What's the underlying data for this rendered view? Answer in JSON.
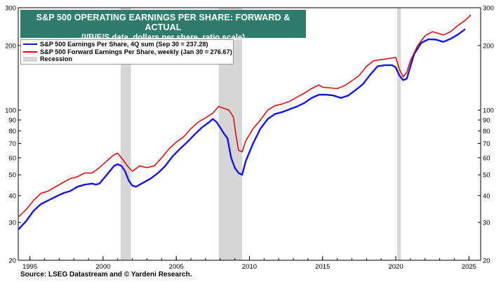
{
  "chart_data": {
    "type": "line",
    "title": "S&P 500 OPERATING EARNINGS PER SHARE: FORWARD & ACTUAL",
    "subtitle": "(I/B/E/S data, dollars per share, ratio scale)",
    "scale": "log",
    "xlim": [
      1994.2,
      2025.8
    ],
    "ylim": [
      20,
      300
    ],
    "y_ticks": [
      20,
      30,
      40,
      50,
      60,
      70,
      80,
      90,
      100,
      200,
      300
    ],
    "x_ticks": [
      1995,
      2000,
      2005,
      2010,
      2015,
      2020,
      2025
    ],
    "grid": false,
    "legend_position": "top-left",
    "recessions": [
      [
        2001.2,
        2001.9
      ],
      [
        2007.9,
        2009.5
      ],
      [
        2020.1,
        2020.35
      ]
    ],
    "recession_label": "Recession",
    "recession_color": "#d6d6d6",
    "series": [
      {
        "name": "S&P 500 Earnings Per Share, 4Q sum (Sep 30 = 237.28)",
        "color": "#1414e6",
        "points": [
          [
            1994.25,
            28
          ],
          [
            1994.75,
            30.5
          ],
          [
            1995.25,
            34
          ],
          [
            1995.75,
            36.5
          ],
          [
            1996.25,
            38
          ],
          [
            1996.75,
            39.5
          ],
          [
            1997.25,
            41
          ],
          [
            1997.75,
            42
          ],
          [
            1998.25,
            44
          ],
          [
            1998.75,
            45
          ],
          [
            1999.25,
            45.5
          ],
          [
            1999.5,
            45
          ],
          [
            1999.75,
            45.5
          ],
          [
            2000.25,
            50
          ],
          [
            2000.75,
            55
          ],
          [
            2001.0,
            56
          ],
          [
            2001.25,
            55
          ],
          [
            2001.5,
            52
          ],
          [
            2001.75,
            47
          ],
          [
            2002.0,
            44.5
          ],
          [
            2002.25,
            44
          ],
          [
            2002.75,
            46
          ],
          [
            2003.25,
            48
          ],
          [
            2003.75,
            51
          ],
          [
            2004.25,
            55
          ],
          [
            2004.75,
            61
          ],
          [
            2005.25,
            66
          ],
          [
            2005.75,
            71
          ],
          [
            2006.25,
            77
          ],
          [
            2006.75,
            83
          ],
          [
            2007.25,
            88
          ],
          [
            2007.5,
            91
          ],
          [
            2007.75,
            88
          ],
          [
            2008.0,
            83
          ],
          [
            2008.25,
            78
          ],
          [
            2008.5,
            74
          ],
          [
            2008.75,
            60
          ],
          [
            2009.0,
            54
          ],
          [
            2009.25,
            51
          ],
          [
            2009.5,
            50
          ],
          [
            2009.75,
            58
          ],
          [
            2010.25,
            70
          ],
          [
            2010.75,
            82
          ],
          [
            2011.25,
            91
          ],
          [
            2011.75,
            96
          ],
          [
            2012.25,
            98
          ],
          [
            2012.75,
            101
          ],
          [
            2013.25,
            104
          ],
          [
            2013.75,
            108
          ],
          [
            2014.25,
            114
          ],
          [
            2014.75,
            118
          ],
          [
            2015.25,
            118
          ],
          [
            2015.75,
            117
          ],
          [
            2016.25,
            114
          ],
          [
            2016.75,
            117
          ],
          [
            2017.25,
            124
          ],
          [
            2017.75,
            132
          ],
          [
            2018.25,
            146
          ],
          [
            2018.75,
            160
          ],
          [
            2019.25,
            162
          ],
          [
            2019.75,
            162
          ],
          [
            2020.0,
            158
          ],
          [
            2020.25,
            145
          ],
          [
            2020.5,
            138
          ],
          [
            2020.75,
            140
          ],
          [
            2021.0,
            160
          ],
          [
            2021.25,
            182
          ],
          [
            2021.75,
            206
          ],
          [
            2022.25,
            214
          ],
          [
            2022.75,
            213
          ],
          [
            2023.25,
            208
          ],
          [
            2023.75,
            215
          ],
          [
            2024.25,
            225
          ],
          [
            2024.7,
            237.28
          ]
        ]
      },
      {
        "name": "S&P 500 Forward Earnings Per Share, weekly (Jan 30 = 276.67)",
        "color": "#e60000",
        "points": [
          [
            1994.25,
            32
          ],
          [
            1994.75,
            34.5
          ],
          [
            1995.25,
            38
          ],
          [
            1995.75,
            41
          ],
          [
            1996.25,
            42
          ],
          [
            1996.75,
            44
          ],
          [
            1997.25,
            46
          ],
          [
            1997.75,
            48
          ],
          [
            1998.25,
            49
          ],
          [
            1998.75,
            51
          ],
          [
            1999.25,
            51
          ],
          [
            1999.75,
            54
          ],
          [
            2000.25,
            58
          ],
          [
            2000.75,
            62
          ],
          [
            2001.0,
            63
          ],
          [
            2001.25,
            60
          ],
          [
            2001.5,
            57
          ],
          [
            2001.75,
            54
          ],
          [
            2002.0,
            52
          ],
          [
            2002.5,
            55
          ],
          [
            2003.0,
            54
          ],
          [
            2003.5,
            55
          ],
          [
            2004.0,
            60
          ],
          [
            2004.5,
            66
          ],
          [
            2005.0,
            71
          ],
          [
            2005.5,
            75
          ],
          [
            2006.0,
            82
          ],
          [
            2006.5,
            88
          ],
          [
            2007.0,
            92
          ],
          [
            2007.5,
            97
          ],
          [
            2007.9,
            104
          ],
          [
            2008.25,
            102
          ],
          [
            2008.6,
            100
          ],
          [
            2008.9,
            93
          ],
          [
            2009.1,
            75
          ],
          [
            2009.25,
            65
          ],
          [
            2009.5,
            64
          ],
          [
            2009.75,
            72
          ],
          [
            2010.25,
            82
          ],
          [
            2010.75,
            90
          ],
          [
            2011.25,
            100
          ],
          [
            2011.75,
            105
          ],
          [
            2012.25,
            107
          ],
          [
            2012.75,
            110
          ],
          [
            2013.25,
            115
          ],
          [
            2013.75,
            120
          ],
          [
            2014.25,
            126
          ],
          [
            2014.75,
            131
          ],
          [
            2015.0,
            128
          ],
          [
            2015.5,
            127
          ],
          [
            2016.0,
            126
          ],
          [
            2016.5,
            130
          ],
          [
            2017.0,
            137
          ],
          [
            2017.5,
            145
          ],
          [
            2018.0,
            160
          ],
          [
            2018.5,
            170
          ],
          [
            2019.0,
            172
          ],
          [
            2019.5,
            174
          ],
          [
            2020.0,
            176
          ],
          [
            2020.25,
            155
          ],
          [
            2020.5,
            143
          ],
          [
            2020.75,
            150
          ],
          [
            2021.0,
            170
          ],
          [
            2021.5,
            200
          ],
          [
            2022.0,
            222
          ],
          [
            2022.5,
            232
          ],
          [
            2022.9,
            228
          ],
          [
            2023.25,
            224
          ],
          [
            2023.75,
            232
          ],
          [
            2024.25,
            248
          ],
          [
            2024.75,
            262
          ],
          [
            2025.1,
            276.67
          ]
        ]
      }
    ]
  },
  "legend": {
    "series1_label": "S&P 500 Earnings Per Share, 4Q sum (Sep 30 = 237.28)",
    "series2_label": "S&P 500 Forward Earnings Per Share, weekly (Jan 30 = 276.67)",
    "recession_label": "Recession"
  },
  "source_text": "Source: LSEG Datastream and © Yardeni Research."
}
